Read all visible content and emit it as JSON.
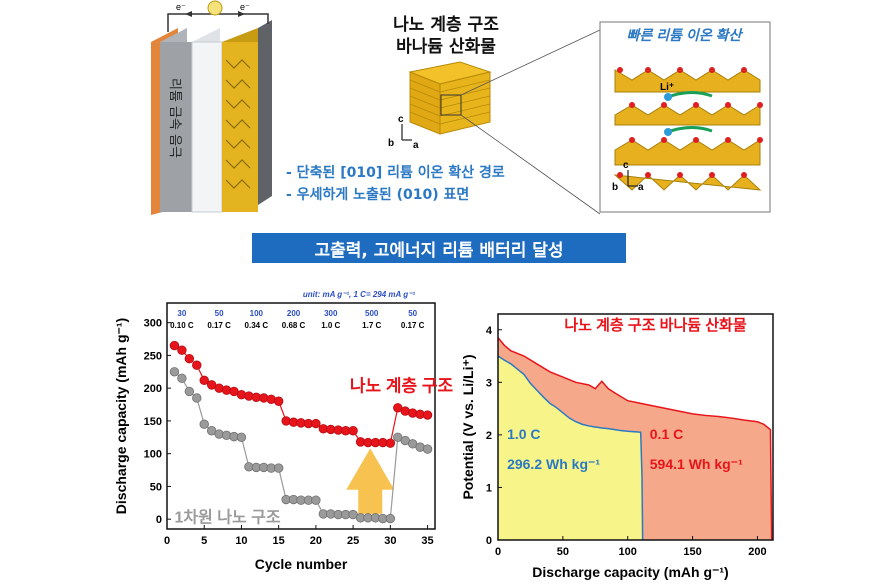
{
  "schematic": {
    "electron_label_left": "e⁻",
    "electron_label_right": "e⁻",
    "electrode_label": "리튬 금속 음극",
    "title_line1": "나노 계층 구조",
    "title_line2": "바나듐 산화물",
    "axis_c": "c",
    "axis_b": "b",
    "axis_a": "a",
    "feature1": "- 단축된 [010] 리튬 이온 확산 경로",
    "feature2": "- 우세하게 노출된 (010) 표면",
    "inset_title": "빠른 리튬 이온 확산",
    "li_label": "Li⁺"
  },
  "banner": {
    "text": "고출력, 고에너지 리튬 배터리 달성"
  },
  "chart_data": [
    {
      "type": "scatter",
      "title": "",
      "xlabel": "Cycle number",
      "ylabel": "Discharge capacity (mAh g⁻¹)",
      "xlim": [
        0,
        36
      ],
      "ylim": [
        -15,
        330
      ],
      "xticks": [
        "0",
        "5",
        "10",
        "15",
        "20",
        "25",
        "30",
        "35"
      ],
      "yticks": [
        "0",
        "50",
        "100",
        "150",
        "200",
        "250",
        "300"
      ],
      "unit_note": "unit: mA g⁻¹, 1 C= 294  mA g⁻¹",
      "rate_currents": [
        "30",
        "50",
        "100",
        "200",
        "300",
        "500",
        "50"
      ],
      "rate_labels": [
        "0.10 C",
        "0.17 C",
        "0.34 C",
        "0.68 C",
        "1.0 C",
        "1.7 C",
        "0.17 C"
      ],
      "arrow": "up",
      "series": [
        {
          "name": "나노 계층 구조",
          "color": "#e8141b",
          "x": [
            1,
            2,
            3,
            4,
            5,
            6,
            7,
            8,
            9,
            10,
            11,
            12,
            13,
            14,
            15,
            16,
            17,
            18,
            19,
            20,
            21,
            22,
            23,
            24,
            25,
            26,
            27,
            28,
            29,
            30,
            31,
            32,
            33,
            34,
            35
          ],
          "values": [
            265,
            258,
            245,
            235,
            212,
            205,
            200,
            197,
            195,
            190,
            188,
            186,
            185,
            183,
            180,
            150,
            148,
            147,
            146,
            146,
            138,
            137,
            136,
            135,
            135,
            118,
            117,
            117,
            117,
            116,
            170,
            165,
            162,
            160,
            159
          ]
        },
        {
          "name": "1차원 나노 구조",
          "color": "#9a9a9a",
          "x": [
            1,
            2,
            3,
            4,
            5,
            6,
            7,
            8,
            9,
            10,
            11,
            12,
            13,
            14,
            15,
            16,
            17,
            18,
            19,
            20,
            21,
            22,
            23,
            24,
            25,
            26,
            27,
            28,
            29,
            30,
            31,
            32,
            33,
            34,
            35
          ],
          "values": [
            225,
            215,
            195,
            185,
            145,
            135,
            130,
            128,
            126,
            125,
            80,
            79,
            79,
            78,
            78,
            30,
            30,
            29,
            29,
            29,
            8,
            8,
            7,
            7,
            7,
            2,
            2,
            2,
            1,
            1,
            125,
            120,
            115,
            110,
            107
          ]
        }
      ]
    },
    {
      "type": "area",
      "title": "나노 계층 구조 바나듐 산화물",
      "xlabel": "Discharge capacity (mAh g⁻¹)",
      "ylabel": "Potential (V vs. Li/Li⁺)",
      "xlim": [
        0,
        212
      ],
      "ylim": [
        0,
        4.3
      ],
      "xticks": [
        "0",
        "50",
        "100",
        "150",
        "200"
      ],
      "yticks": [
        "0",
        "1",
        "2",
        "3",
        "4"
      ],
      "series": [
        {
          "name": "1.0 C",
          "energy": "296.2 Wh kg⁻¹",
          "color": "#2b79c4",
          "fill": "#f7f48a",
          "x": [
            0,
            5,
            10,
            15,
            20,
            25,
            30,
            35,
            40,
            45,
            50,
            55,
            60,
            65,
            70,
            75,
            80,
            85,
            90,
            95,
            100,
            105,
            110,
            111,
            111.5
          ],
          "y": [
            3.5,
            3.42,
            3.35,
            3.25,
            3.15,
            2.98,
            2.85,
            2.72,
            2.6,
            2.52,
            2.42,
            2.32,
            2.25,
            2.2,
            2.17,
            2.15,
            2.13,
            2.12,
            2.1,
            2.08,
            2.07,
            2.06,
            2.05,
            1.2,
            0
          ]
        },
        {
          "name": "0.1 C",
          "energy": "594.1 Wh kg⁻¹",
          "color": "#e8141b",
          "fill": "#f5a98a",
          "x": [
            0,
            5,
            10,
            20,
            30,
            40,
            50,
            60,
            70,
            75,
            80,
            85,
            90,
            100,
            110,
            120,
            130,
            140,
            150,
            160,
            170,
            180,
            190,
            200,
            205,
            210,
            211
          ],
          "y": [
            3.85,
            3.7,
            3.6,
            3.5,
            3.35,
            3.2,
            3.1,
            3.0,
            2.95,
            2.88,
            3.02,
            2.88,
            2.8,
            2.65,
            2.6,
            2.55,
            2.5,
            2.45,
            2.4,
            2.37,
            2.35,
            2.32,
            2.28,
            2.25,
            2.2,
            2.1,
            0
          ]
        }
      ]
    }
  ]
}
